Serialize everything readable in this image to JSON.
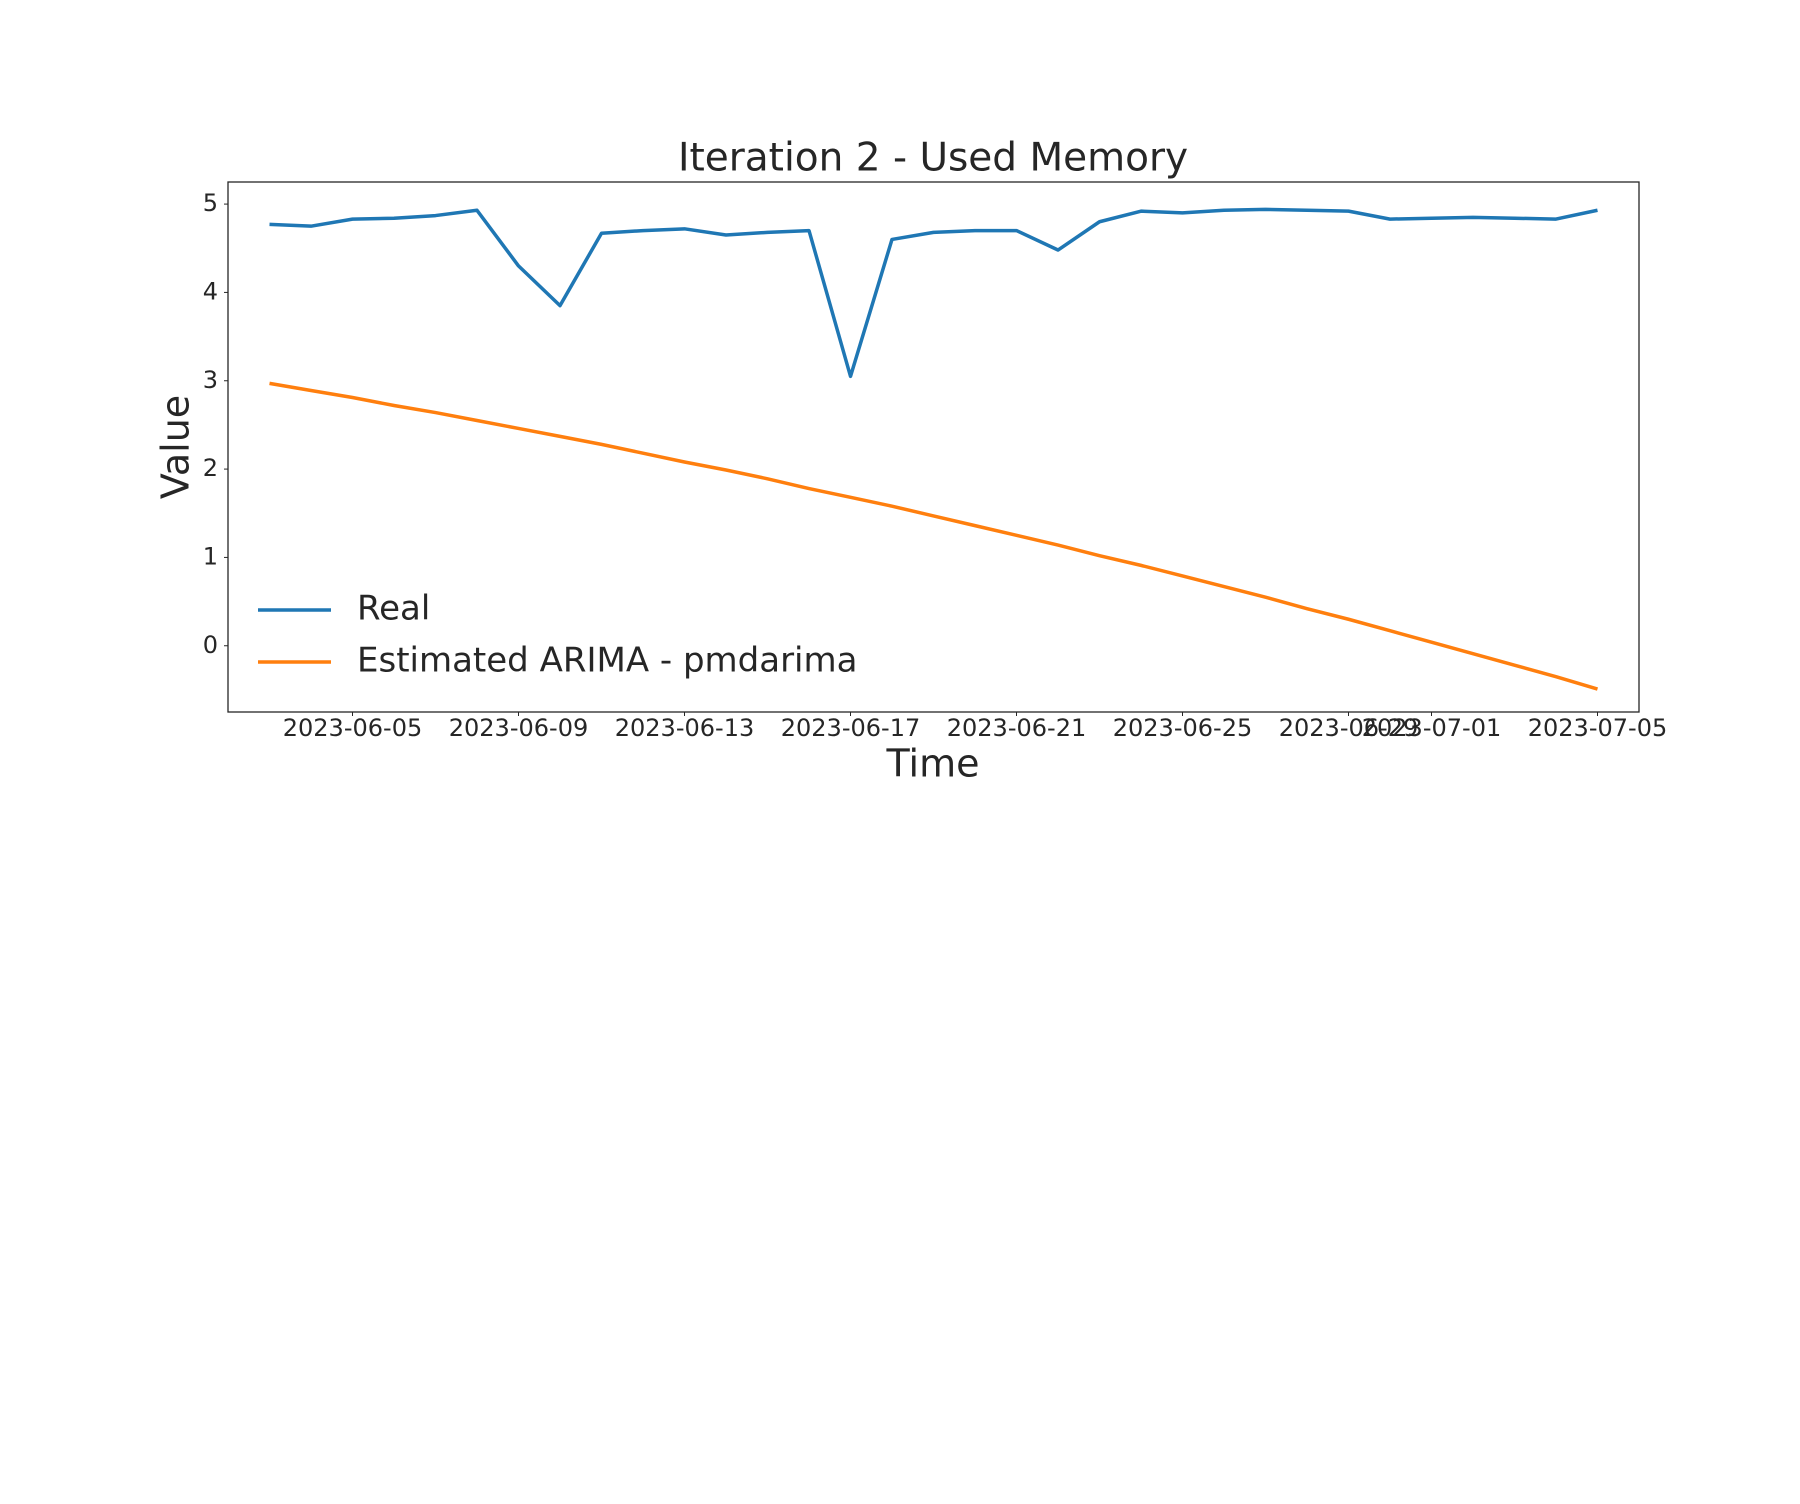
{
  "chart_data": {
    "type": "line",
    "title": "Iteration 2 - Used Memory",
    "x_label": "Time",
    "y_label": "Value",
    "x": [
      "2023-06-03",
      "2023-06-04",
      "2023-06-05",
      "2023-06-06",
      "2023-06-07",
      "2023-06-08",
      "2023-06-09",
      "2023-06-10",
      "2023-06-11",
      "2023-06-12",
      "2023-06-13",
      "2023-06-14",
      "2023-06-15",
      "2023-06-16",
      "2023-06-17",
      "2023-06-18",
      "2023-06-19",
      "2023-06-20",
      "2023-06-21",
      "2023-06-22",
      "2023-06-23",
      "2023-06-24",
      "2023-06-25",
      "2023-06-26",
      "2023-06-27",
      "2023-06-28",
      "2023-06-29",
      "2023-06-30",
      "2023-07-01",
      "2023-07-02",
      "2023-07-03",
      "2023-07-04",
      "2023-07-05"
    ],
    "series": [
      {
        "name": "Real",
        "color": "#1f77b4",
        "values": [
          4.77,
          4.75,
          4.83,
          4.84,
          4.87,
          4.93,
          4.3,
          3.85,
          4.67,
          4.7,
          4.72,
          4.65,
          4.68,
          4.7,
          3.05,
          4.6,
          4.68,
          4.7,
          4.7,
          4.48,
          4.8,
          4.92,
          4.9,
          4.93,
          4.94,
          4.93,
          4.92,
          4.83,
          4.84,
          4.85,
          4.84,
          4.83,
          4.93
        ]
      },
      {
        "name": "Estimated ARIMA - pmdarima",
        "color": "#ff7f0e",
        "values": [
          2.97,
          2.89,
          2.81,
          2.72,
          2.64,
          2.55,
          2.46,
          2.37,
          2.28,
          2.18,
          2.08,
          1.99,
          1.89,
          1.78,
          1.68,
          1.58,
          1.47,
          1.36,
          1.25,
          1.14,
          1.02,
          0.91,
          0.79,
          0.67,
          0.55,
          0.42,
          0.3,
          0.17,
          0.04,
          -0.09,
          -0.22,
          -0.35,
          -0.49
        ]
      }
    ],
    "xlim": [
      "2023-06-02",
      "2023-07-06"
    ],
    "xticks": [
      "2023-06-05",
      "2023-06-09",
      "2023-06-13",
      "2023-06-17",
      "2023-06-21",
      "2023-06-25",
      "2023-06-29",
      "2023-07-01",
      "2023-07-05"
    ],
    "ylim": [
      -0.75,
      5.25
    ],
    "yticks": [
      0,
      1,
      2,
      3,
      4,
      5
    ],
    "grid": false,
    "legend": "lower left"
  }
}
